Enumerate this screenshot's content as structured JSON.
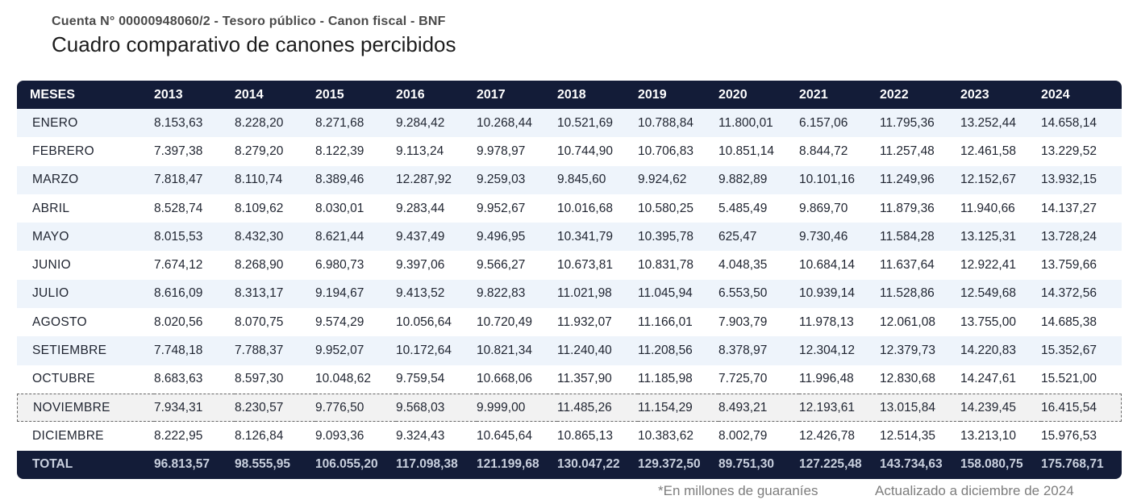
{
  "header": {
    "subtitle": "Cuenta N° 00000948060/2 - Tesoro público - Canon fiscal - BNF",
    "title": "Cuadro comparativo de canones percibidos"
  },
  "table": {
    "columns": [
      "MESES",
      "2013",
      "2014",
      "2015",
      "2016",
      "2017",
      "2018",
      "2019",
      "2020",
      "2021",
      "2022",
      "2023",
      "2024"
    ],
    "rows": [
      {
        "month": "ENERO",
        "values": [
          "8.153,63",
          "8.228,20",
          "8.271,68",
          "9.284,42",
          "10.268,44",
          "10.521,69",
          "10.788,84",
          "11.800,01",
          "6.157,06",
          "11.795,36",
          "13.252,44",
          "14.658,14"
        ]
      },
      {
        "month": "FEBRERO",
        "values": [
          "7.397,38",
          "8.279,20",
          "8.122,39",
          "9.113,24",
          "9.978,97",
          "10.744,90",
          "10.706,83",
          "10.851,14",
          "8.844,72",
          "11.257,48",
          "12.461,58",
          "13.229,52"
        ]
      },
      {
        "month": "MARZO",
        "values": [
          "7.818,47",
          "8.110,74",
          "8.389,46",
          "12.287,92",
          "9.259,03",
          "9.845,60",
          "9.924,62",
          "9.882,89",
          "10.101,16",
          "11.249,96",
          "12.152,67",
          "13.932,15"
        ]
      },
      {
        "month": "ABRIL",
        "values": [
          "8.528,74",
          "8.109,62",
          "8.030,01",
          "9.283,44",
          "9.952,67",
          "10.016,68",
          "10.580,25",
          "5.485,49",
          "9.869,70",
          "11.879,36",
          "11.940,66",
          "14.137,27"
        ]
      },
      {
        "month": "MAYO",
        "values": [
          "8.015,53",
          "8.432,30",
          "8.621,44",
          "9.437,49",
          "9.496,95",
          "10.341,79",
          "10.395,78",
          "625,47",
          "9.730,46",
          "11.584,28",
          "13.125,31",
          "13.728,24"
        ]
      },
      {
        "month": "JUNIO",
        "values": [
          "7.674,12",
          "8.268,90",
          "6.980,73",
          "9.397,06",
          "9.566,27",
          "10.673,81",
          "10.831,78",
          "4.048,35",
          "10.684,14",
          "11.637,64",
          "12.922,41",
          "13.759,66"
        ]
      },
      {
        "month": "JULIO",
        "values": [
          "8.616,09",
          "8.313,17",
          "9.194,67",
          "9.413,52",
          "9.822,83",
          "11.021,98",
          "11.045,94",
          "6.553,50",
          "10.939,14",
          "11.528,86",
          "12.549,68",
          "14.372,56"
        ]
      },
      {
        "month": "AGOSTO",
        "values": [
          "8.020,56",
          "8.070,75",
          "9.574,29",
          "10.056,64",
          "10.720,49",
          "11.932,07",
          "11.166,01",
          "7.903,79",
          "11.978,13",
          "12.061,08",
          "13.755,00",
          "14.685,38"
        ]
      },
      {
        "month": "SETIEMBRE",
        "values": [
          "7.748,18",
          "7.788,37",
          "9.952,07",
          "10.172,64",
          "10.821,34",
          "11.240,40",
          "11.208,56",
          "8.378,97",
          "12.304,12",
          "12.379,73",
          "14.220,83",
          "15.352,67"
        ]
      },
      {
        "month": "OCTUBRE",
        "values": [
          "8.683,63",
          "8.597,30",
          "10.048,62",
          "9.759,54",
          "10.668,06",
          "11.357,90",
          "11.185,98",
          "7.725,70",
          "11.996,48",
          "12.830,68",
          "14.247,61",
          "15.521,00"
        ]
      },
      {
        "month": "NOVIEMBRE",
        "values": [
          "7.934,31",
          "8.230,57",
          "9.776,50",
          "9.568,03",
          "9.999,00",
          "11.485,26",
          "11.154,29",
          "8.493,21",
          "12.193,61",
          "13.015,84",
          "14.239,45",
          "16.415,54"
        ],
        "highlighted": true
      },
      {
        "month": "DICIEMBRE",
        "values": [
          "8.222,95",
          "8.126,84",
          "9.093,36",
          "9.324,43",
          "10.645,64",
          "10.865,13",
          "10.383,62",
          "8.002,79",
          "12.426,78",
          "12.514,35",
          "13.213,10",
          "15.976,53"
        ]
      }
    ],
    "total": {
      "label": "TOTAL",
      "values": [
        "96.813,57",
        "98.555,95",
        "106.055,20",
        "117.098,38",
        "121.199,68",
        "130.047,22",
        "129.372,50",
        "89.751,30",
        "127.225,48",
        "143.734,63",
        "158.080,75",
        "175.768,71"
      ]
    }
  },
  "footer": {
    "currency_note": "*En millones de guaraníes",
    "updated_note": "Actualizado a diciembre de 2024"
  },
  "colors": {
    "header_bg": "#131c38",
    "row_alt_bg": "#eef4fb",
    "highlight_bg": "#f2f2f2"
  }
}
